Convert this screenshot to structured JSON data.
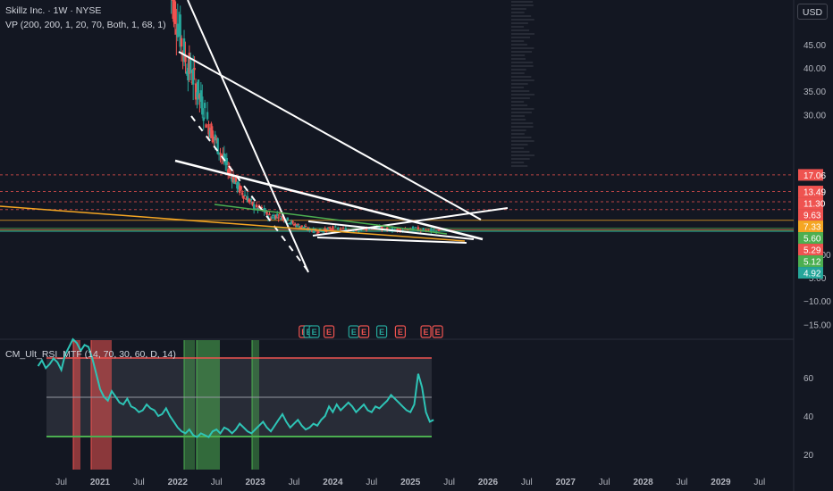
{
  "legend": {
    "symbol_line": "Skillz Inc. · 1W · NYSE",
    "vp_line": "VP (200, 200, 1, 20, 70, Both, 1, 68, 1)",
    "rsi_line": "CM_Ult_RSI_MTF (14, 70, 30, 60, D, 14)"
  },
  "currency_button": "USD",
  "colors": {
    "background": "#131722",
    "bull": "#26a69a",
    "bear": "#ef5350",
    "grid_text": "#b2b5be",
    "rsi_line": "#2ec4b6",
    "trendline": "#ffffff",
    "orange_line": "#f5a623",
    "green_line": "#4caf50"
  },
  "chart_data": [
    {
      "type": "candlestick",
      "name": "price",
      "y_ticks": [
        "45.00",
        "40.00",
        "35.00",
        "30.00",
        "0.0000",
        "−5.00",
        "−10.00",
        "−15.00"
      ],
      "price_labels": [
        {
          "text": "17.06",
          "value": 17.06,
          "color": "#ef5350"
        },
        {
          "text": "13.49",
          "value": 13.49,
          "color": "#ef5350"
        },
        {
          "text": "11.30",
          "value": 11.3,
          "color": "#ef5350"
        },
        {
          "text": "9.63",
          "value": 9.63,
          "color": "#ef5350"
        },
        {
          "text": "7.33",
          "value": 7.33,
          "color": "#f5a623"
        },
        {
          "text": "5.60",
          "value": 5.6,
          "color": "#4caf50"
        },
        {
          "text": "5.29",
          "value": 5.29,
          "color": "#ef5350"
        },
        {
          "text": "5.12",
          "value": 5.12,
          "color": "#4caf50"
        },
        {
          "text": "4.92",
          "value": 4.92,
          "color": "#26a69a"
        }
      ],
      "earnings_markers": [
        {
          "date": "2023.63",
          "kind": "bear"
        },
        {
          "date": "2023.69",
          "kind": "bull"
        },
        {
          "date": "2023.76",
          "kind": "bull"
        },
        {
          "date": "2023.95",
          "kind": "bear"
        },
        {
          "date": "2024.27",
          "kind": "bull"
        },
        {
          "date": "2024.40",
          "kind": "bear"
        },
        {
          "date": "2024.63",
          "kind": "bull"
        },
        {
          "date": "2024.87",
          "kind": "bear"
        },
        {
          "date": "2025.20",
          "kind": "bear"
        },
        {
          "date": "2025.35",
          "kind": "bear"
        }
      ],
      "series": [
        {
          "name": "",
          "x": [
            2021.9,
            2022.0,
            2022.1,
            2022.2,
            2022.3,
            2022.4,
            2022.5,
            2022.6,
            2022.7,
            2022.8,
            2022.9,
            2023.0,
            2023.1,
            2023.2,
            2023.3,
            2023.4,
            2023.5,
            2023.6,
            2023.7,
            2023.8,
            2023.9,
            2024.0,
            2024.2,
            2024.4,
            2024.6,
            2024.8,
            2025.0,
            2025.2,
            2025.4
          ],
          "values": [
            58,
            50,
            42,
            38,
            33,
            28,
            24,
            20,
            17,
            14,
            12,
            10,
            9.5,
            8,
            8.5,
            7.5,
            6.5,
            6,
            5.3,
            5.0,
            5.2,
            5.6,
            5.3,
            5.4,
            5.7,
            5.3,
            5.6,
            5.2,
            4.9
          ]
        }
      ]
    },
    {
      "type": "line",
      "name": "rsi",
      "y_ticks": [
        "60",
        "40",
        "20"
      ],
      "levels": {
        "upper": 70,
        "lower": 30,
        "mid": 60
      },
      "x_ticks": [
        "Jul",
        "2021",
        "Jul",
        "2022",
        "Jul",
        "2023",
        "Jul",
        "2024",
        "Jul",
        "2025",
        "Jul",
        "2026",
        "Jul",
        "2027",
        "Jul",
        "2028",
        "Jul",
        "2029",
        "Jul"
      ],
      "x": [
        2020.2,
        2020.25,
        2020.3,
        2020.35,
        2020.4,
        2020.45,
        2020.5,
        2020.55,
        2020.6,
        2020.65,
        2020.7,
        2020.75,
        2020.8,
        2020.85,
        2020.9,
        2020.95,
        2021.0,
        2021.05,
        2021.1,
        2021.15,
        2021.2,
        2021.25,
        2021.3,
        2021.35,
        2021.4,
        2021.45,
        2021.5,
        2021.55,
        2021.6,
        2021.65,
        2021.7,
        2021.75,
        2021.8,
        2021.85,
        2021.9,
        2021.95,
        2022.0,
        2022.05,
        2022.1,
        2022.15,
        2022.2,
        2022.25,
        2022.3,
        2022.35,
        2022.4,
        2022.45,
        2022.5,
        2022.55,
        2022.6,
        2022.65,
        2022.7,
        2022.75,
        2022.8,
        2022.85,
        2022.9,
        2022.95,
        2023.0,
        2023.05,
        2023.1,
        2023.15,
        2023.2,
        2023.25,
        2023.3,
        2023.35,
        2023.4,
        2023.45,
        2023.5,
        2023.55,
        2023.6,
        2023.65,
        2023.7,
        2023.75,
        2023.8,
        2023.85,
        2023.9,
        2023.95,
        2024.0,
        2024.05,
        2024.1,
        2024.15,
        2024.2,
        2024.25,
        2024.3,
        2024.35,
        2024.4,
        2024.45,
        2024.5,
        2024.55,
        2024.6,
        2024.65,
        2024.7,
        2024.75,
        2024.8,
        2024.85,
        2024.9,
        2024.95,
        2025.0,
        2025.05,
        2025.1,
        2025.15,
        2025.2,
        2025.25,
        2025.3
      ],
      "values": [
        66,
        69,
        65,
        67,
        70,
        68,
        64,
        72,
        76,
        80,
        78,
        74,
        77,
        76,
        70,
        62,
        54,
        50,
        48,
        53,
        50,
        47,
        46,
        49,
        45,
        44,
        42,
        43,
        46,
        44,
        43,
        40,
        41,
        44,
        40,
        37,
        34,
        32,
        31,
        33,
        30,
        29,
        31,
        30,
        29,
        32,
        33,
        31,
        34,
        33,
        31,
        33,
        36,
        34,
        32,
        31,
        33,
        35,
        37,
        34,
        32,
        35,
        38,
        41,
        37,
        34,
        36,
        38,
        35,
        33,
        34,
        36,
        35,
        38,
        40,
        45,
        42,
        46,
        43,
        45,
        47,
        45,
        42,
        44,
        46,
        43,
        42,
        45,
        44,
        46,
        48,
        51,
        49,
        47,
        45,
        43,
        42,
        46,
        62,
        55,
        42,
        37,
        38
      ]
    }
  ]
}
